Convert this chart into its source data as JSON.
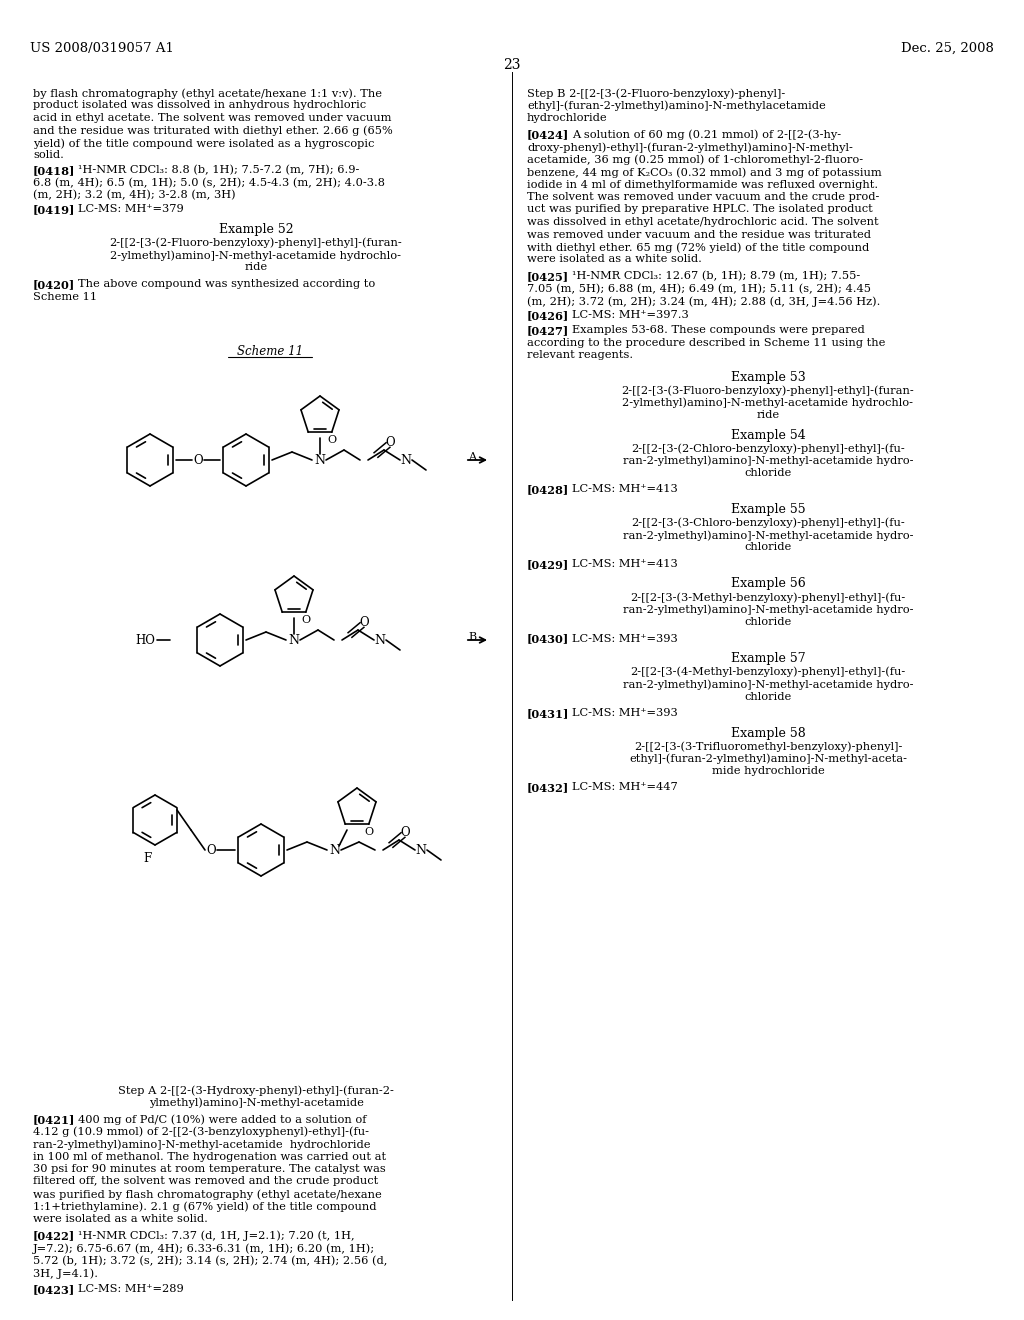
{
  "bg_color": "#ffffff",
  "header_left": "US 2008/0319057 A1",
  "header_right": "Dec. 25, 2008",
  "page_number": "23"
}
